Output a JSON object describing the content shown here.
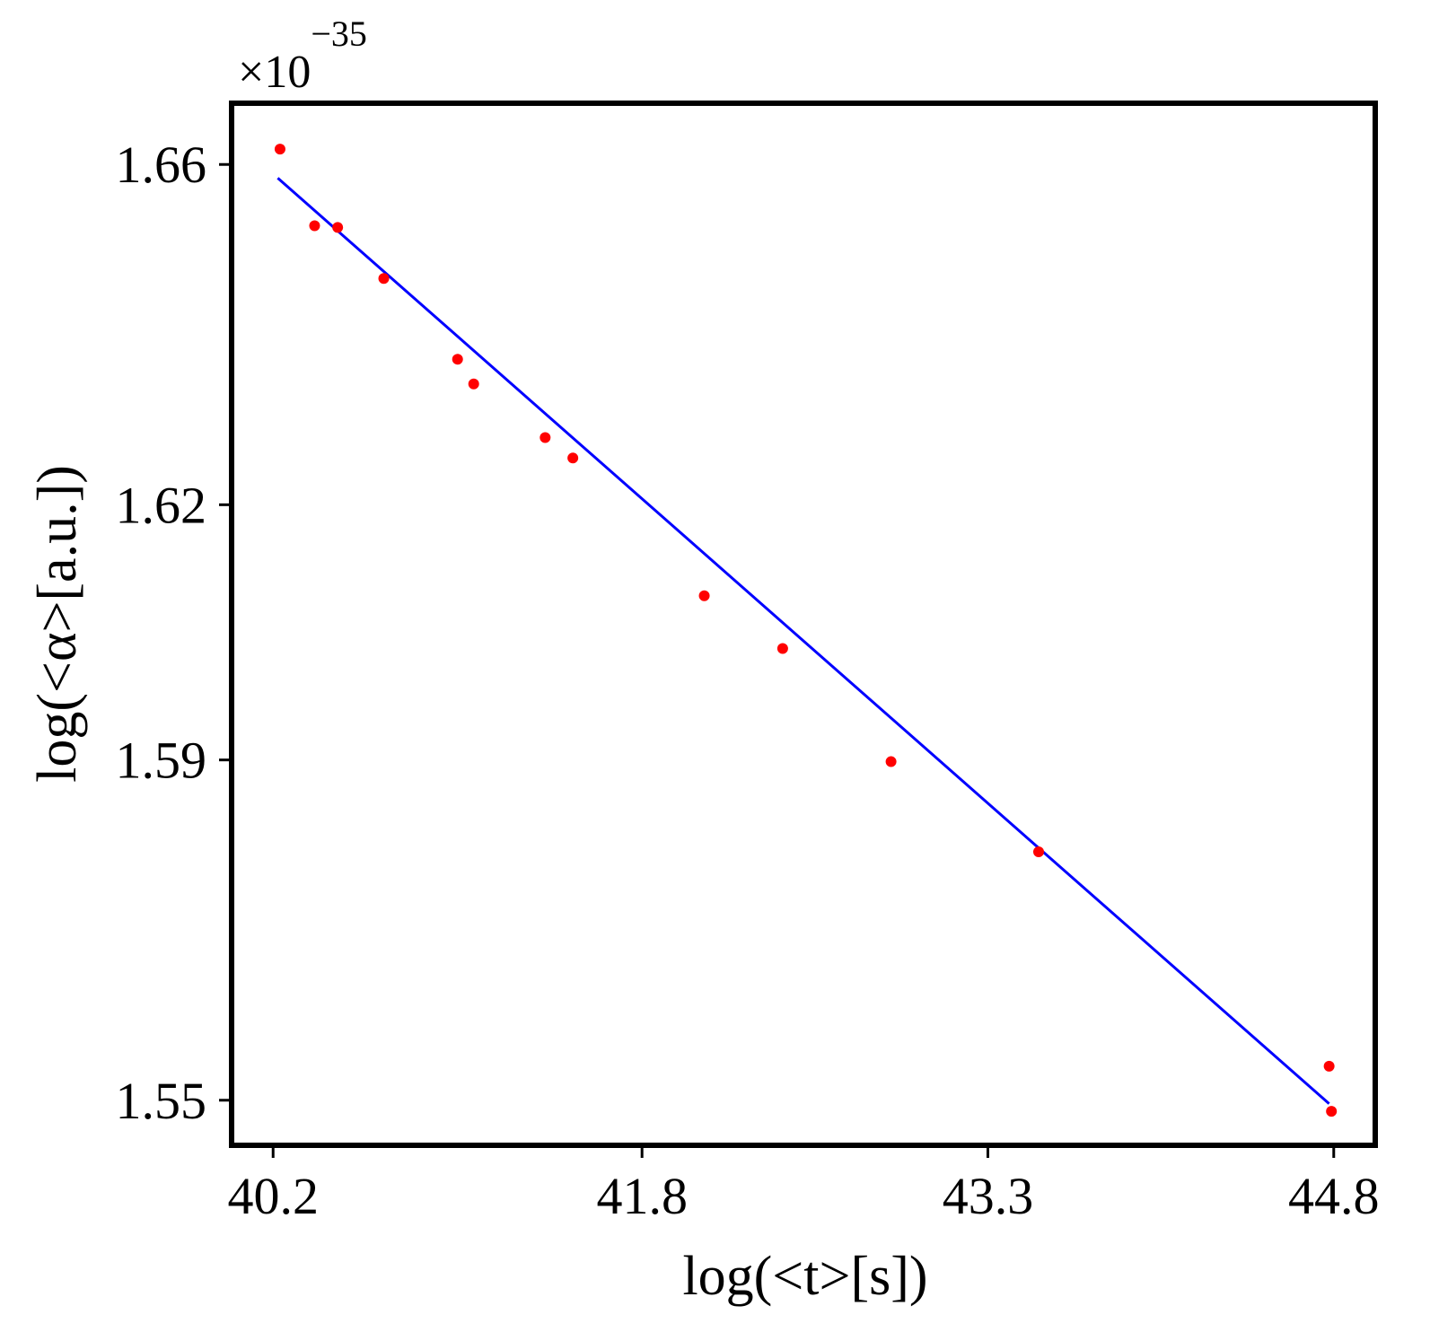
{
  "chart_data": {
    "type": "scatter",
    "title": "",
    "xlabel": "log(<t>[s])",
    "ylabel": "log(<α>[a.u.])",
    "y_multiplier": {
      "base": "×10",
      "exponent": "−35"
    },
    "xlim": [
      40.02,
      44.98
    ],
    "ylim": [
      1.5447,
      1.6672
    ],
    "x_ticks": [
      40.2,
      41.8,
      43.3,
      44.8
    ],
    "x_tick_labels": [
      "40.2",
      "41.8",
      "43.3",
      "44.8"
    ],
    "y_ticks": [
      1.55,
      1.59,
      1.62,
      1.66
    ],
    "y_tick_labels": [
      "1.55",
      "1.59",
      "1.62",
      "1.66"
    ],
    "grid": false,
    "legend": "none",
    "series": [
      {
        "kind": "points",
        "color": "#ff0000",
        "points": [
          {
            "x": 40.23,
            "y": 1.6618
          },
          {
            "x": 40.38,
            "y": 1.6528
          },
          {
            "x": 40.48,
            "y": 1.6526
          },
          {
            "x": 40.68,
            "y": 1.6466
          },
          {
            "x": 41.0,
            "y": 1.6371
          },
          {
            "x": 41.07,
            "y": 1.6342
          },
          {
            "x": 41.38,
            "y": 1.6279
          },
          {
            "x": 41.5,
            "y": 1.6255
          },
          {
            "x": 42.07,
            "y": 1.6093
          },
          {
            "x": 42.41,
            "y": 1.6031
          },
          {
            "x": 42.88,
            "y": 1.5898
          },
          {
            "x": 43.52,
            "y": 1.5792
          },
          {
            "x": 44.78,
            "y": 1.554
          },
          {
            "x": 44.79,
            "y": 1.5487
          }
        ]
      },
      {
        "kind": "fit-line",
        "color": "#0000ff",
        "points": [
          {
            "x": 40.22,
            "y": 1.6584
          },
          {
            "x": 44.78,
            "y": 1.5496
          }
        ]
      }
    ]
  }
}
